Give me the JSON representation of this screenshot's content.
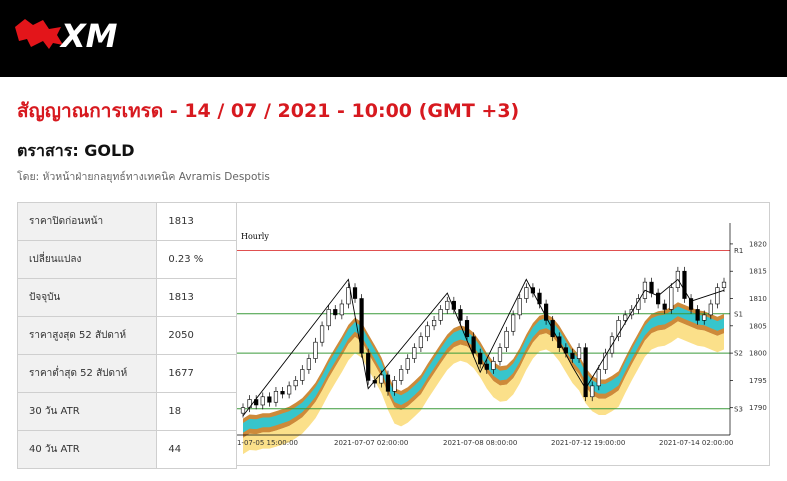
{
  "header": {
    "logo_text": "XM"
  },
  "title": "สัญญาณการเทรด - 14 / 07 / 2021 - 10:00 (GMT +3)",
  "instrument": "ตราสาร: GOLD",
  "byline": "โดย: หัวหน้าฝ่ายกลยุทธ์ทางเทคนิค Avramis Despotis",
  "stats": [
    {
      "label": "ราคาปิดก่อนหน้า",
      "value": "1813"
    },
    {
      "label": "เปลี่ยนแปลง",
      "value": "0.23 %"
    },
    {
      "label": "ปัจจุบัน",
      "value": "1813"
    },
    {
      "label": "ราคาสูงสุด 52 สัปดาห์",
      "value": "2050"
    },
    {
      "label": "ราคาต่ำสุด 52 สัปดาห์",
      "value": "1677"
    },
    {
      "label": "30 วัน ATR",
      "value": "18"
    },
    {
      "label": "40 วัน ATR",
      "value": "44"
    }
  ],
  "chart_data": {
    "type": "line",
    "title": "Hourly",
    "y_ticks": [
      1790,
      1795,
      1800,
      1805,
      1810,
      1815,
      1820
    ],
    "ylim": [
      1785,
      1822
    ],
    "x_ticks": [
      "1-07-05 15:00:00",
      "2021-07-07 02:00:00",
      "2021-07-08 08:00:00",
      "2021-07-12 19:00:00",
      "2021-07-14 02:00:00"
    ],
    "levels": [
      {
        "name": "R1",
        "value": 1818.8,
        "color": "#e05050"
      },
      {
        "name": "S1",
        "value": 1807.2,
        "color": "#3a9a3a"
      },
      {
        "name": "S2",
        "value": 1800.0,
        "color": "#3a9a3a"
      },
      {
        "name": "S3",
        "value": 1789.8,
        "color": "#3a9a3a"
      }
    ],
    "close": [
      1790,
      1791.5,
      1790.5,
      1792,
      1791,
      1793,
      1792.5,
      1794,
      1795,
      1797,
      1799,
      1802,
      1805,
      1808,
      1807,
      1809,
      1812,
      1810,
      1800,
      1795,
      1794.5,
      1796,
      1793,
      1795,
      1797,
      1799,
      1801,
      1803,
      1805,
      1806,
      1808,
      1809.5,
      1808,
      1806,
      1803,
      1800,
      1798,
      1797,
      1798.5,
      1801,
      1804,
      1807,
      1810,
      1812,
      1811,
      1809,
      1806,
      1803,
      1801,
      1800,
      1799,
      1801,
      1792,
      1794,
      1797,
      1800,
      1803,
      1806,
      1807,
      1808,
      1810,
      1813,
      1811,
      1809,
      1808,
      1812,
      1815,
      1810,
      1808,
      1806,
      1807,
      1809,
      1812,
      1813
    ],
    "colors": {
      "band_outer": "#cd8a3a",
      "band_mid": "#37c5cc",
      "band_inner": "#fbe08a",
      "up": "#ffffff",
      "down": "#000000"
    }
  }
}
